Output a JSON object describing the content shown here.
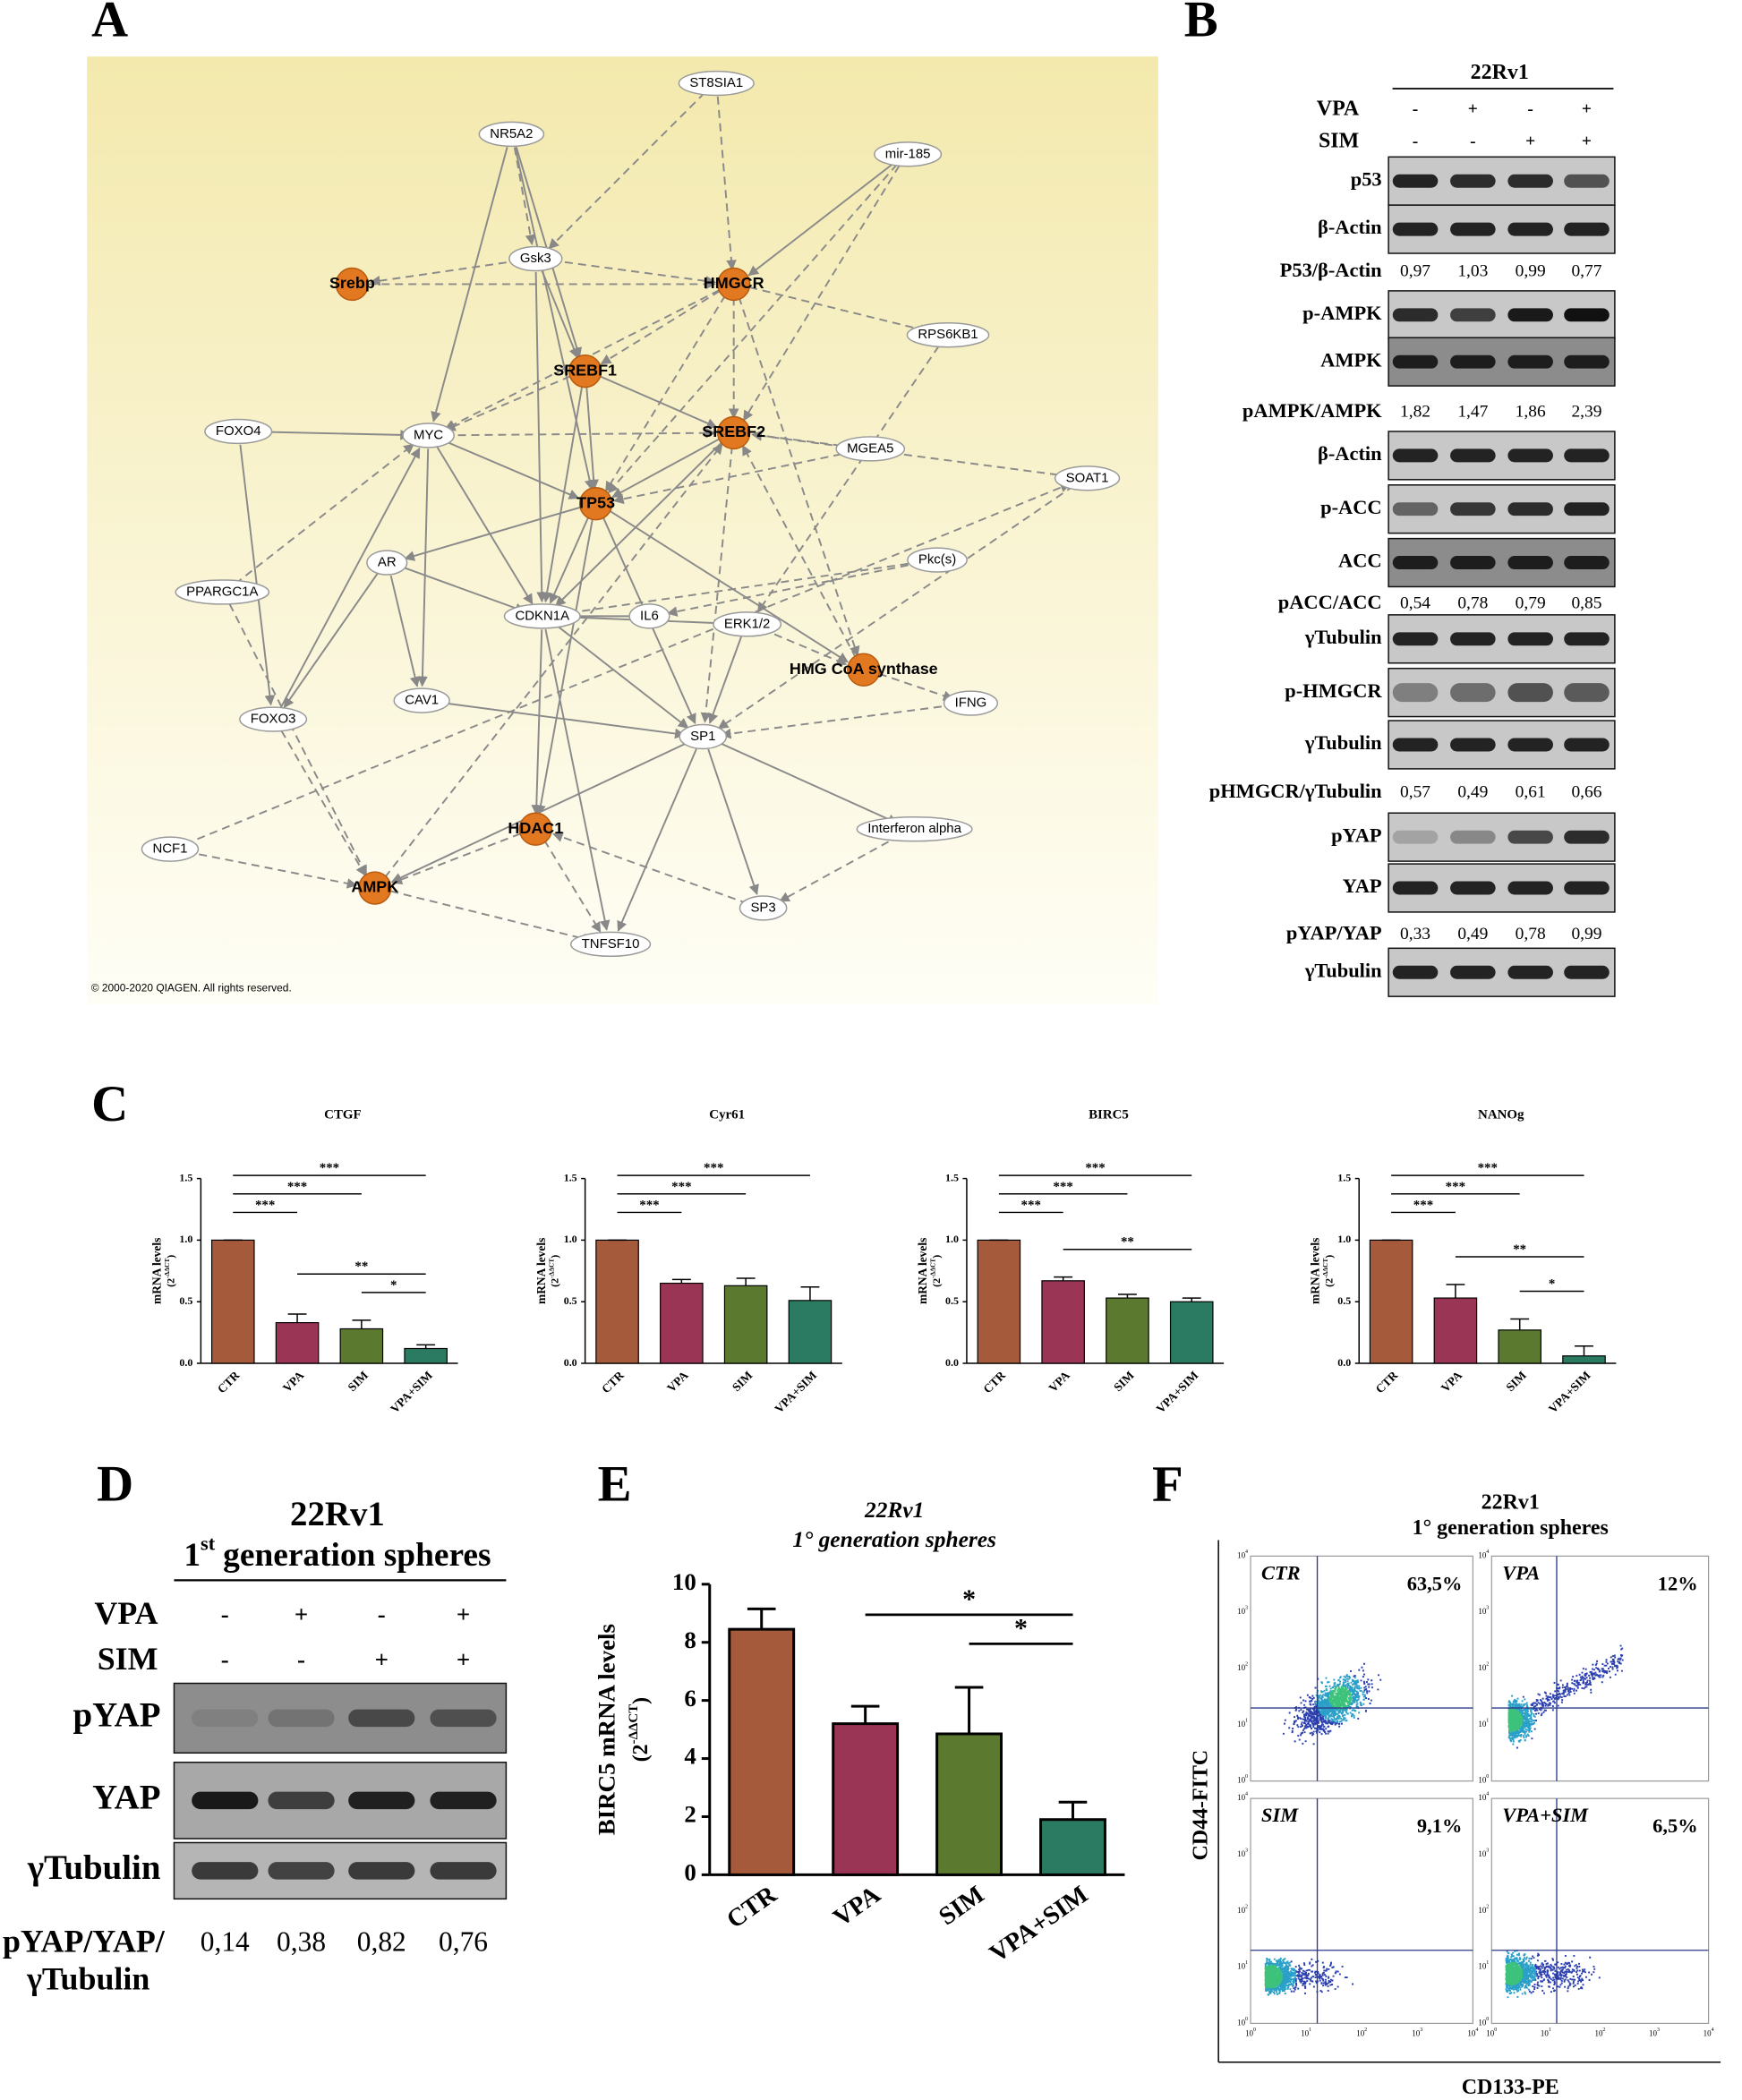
{
  "panel_labels": [
    "A",
    "B",
    "C",
    "D",
    "E",
    "F"
  ],
  "network": {
    "nodes": [
      {
        "label": "ST8SIA1",
        "highlighted": false
      },
      {
        "label": "NR5A2",
        "highlighted": false
      },
      {
        "label": "mir-185",
        "highlighted": false
      },
      {
        "label": "Gsk3",
        "highlighted": false
      },
      {
        "label": "Srebp",
        "highlighted": true
      },
      {
        "label": "HMGCR",
        "highlighted": true
      },
      {
        "label": "RPS6KB1",
        "highlighted": false
      },
      {
        "label": "SREBF1",
        "highlighted": true
      },
      {
        "label": "FOXO4",
        "highlighted": false
      },
      {
        "label": "MYC",
        "highlighted": false
      },
      {
        "label": "SREBF2",
        "highlighted": true
      },
      {
        "label": "MGEA5",
        "highlighted": false
      },
      {
        "label": "SOAT1",
        "highlighted": false
      },
      {
        "label": "TP53",
        "highlighted": true
      },
      {
        "label": "AR",
        "highlighted": false
      },
      {
        "label": "PPARGC1A",
        "highlighted": false
      },
      {
        "label": "Pkc(s)",
        "highlighted": false
      },
      {
        "label": "IL6",
        "highlighted": false
      },
      {
        "label": "ERK1/2",
        "highlighted": false
      },
      {
        "label": "CDKN1A",
        "highlighted": false
      },
      {
        "label": "HMG CoA synthase",
        "highlighted": true
      },
      {
        "label": "CAV1",
        "highlighted": false
      },
      {
        "label": "FOXO3",
        "highlighted": false
      },
      {
        "label": "IFNG",
        "highlighted": false
      },
      {
        "label": "SP1",
        "highlighted": false
      },
      {
        "label": "HDAC1",
        "highlighted": true
      },
      {
        "label": "Interferon alpha",
        "highlighted": false
      },
      {
        "label": "NCF1",
        "highlighted": false
      },
      {
        "label": "AMPK",
        "highlighted": true
      },
      {
        "label": "SP3",
        "highlighted": false
      },
      {
        "label": "TNFSF10",
        "highlighted": false
      }
    ],
    "copyright": "© 2000-2020 QIAGEN. All rights reserved."
  },
  "blot_b": {
    "cell_line": "22Rv1",
    "treatments": [
      {
        "name": "VPA",
        "signs": [
          "-",
          "+",
          "-",
          "+"
        ]
      },
      {
        "name": "SIM",
        "signs": [
          "-",
          "-",
          "+",
          "+"
        ]
      }
    ],
    "rows": [
      {
        "label": "p53"
      },
      {
        "label": "β-Actin"
      },
      {
        "label": "P53/β-Actin",
        "values": [
          "0,97",
          "1,03",
          "0,99",
          "0,77"
        ]
      },
      {
        "label": "p-AMPK"
      },
      {
        "label": "AMPK"
      },
      {
        "label": "pAMPK/AMPK",
        "values": [
          "1,82",
          "1,47",
          "1,86",
          "2,39"
        ]
      },
      {
        "label": "β-Actin"
      },
      {
        "label": "p-ACC"
      },
      {
        "label": "ACC"
      },
      {
        "label": "pACC/ACC",
        "values": [
          "0,54",
          "0,78",
          "0,79",
          "0,85"
        ]
      },
      {
        "label": "γTubulin"
      },
      {
        "label": "p-HMGCR"
      },
      {
        "label": "γTubulin"
      },
      {
        "label": "pHMGCR/γTubulin",
        "values": [
          "0,57",
          "0,49",
          "0,61",
          "0,66"
        ]
      },
      {
        "label": "pYAP"
      },
      {
        "label": "YAP"
      },
      {
        "label": "pYAP/YAP",
        "values": [
          "0,33",
          "0,49",
          "0,78",
          "0,99"
        ]
      },
      {
        "label": "γTubulin"
      }
    ]
  },
  "chart_data": [
    {
      "type": "bar",
      "title": "CTGF",
      "y_label": "mRNA levels",
      "y_unit_base": "(2",
      "y_unit_exp": "-ΔΔCT",
      "y_unit_end": ")",
      "categories": [
        "CTR",
        "VPA",
        "SIM",
        "VPA+SIM"
      ],
      "values": [
        1,
        0.33,
        0.28,
        0.12
      ],
      "errors": [
        0,
        0.07,
        0.07,
        0.03
      ],
      "colors": [
        "#a65a3c",
        "#9b3556",
        "#5b7a2f",
        "#2a7b62"
      ],
      "ylim": [
        0,
        1.5
      ],
      "yticks": [
        {
          "value": 0,
          "label": "0.0"
        },
        {
          "value": 0.5,
          "label": "0.5"
        },
        {
          "value": 1,
          "label": "1.0"
        },
        {
          "value": 1.5,
          "label": "1.5"
        }
      ],
      "significance": [
        {
          "label": "***",
          "between": [
            "CTR",
            "VPA"
          ]
        },
        {
          "label": "***",
          "between": [
            "CTR",
            "SIM"
          ]
        },
        {
          "label": "***",
          "between": [
            "CTR",
            "VPA+SIM"
          ]
        },
        {
          "label": "*",
          "between": [
            "SIM",
            "VPA+SIM"
          ]
        },
        {
          "label": "**",
          "between": [
            "VPA",
            "VPA+SIM"
          ]
        }
      ]
    },
    {
      "type": "bar",
      "title": "Cyr61",
      "y_label": "mRNA levels",
      "y_unit_base": "(2",
      "y_unit_exp": "-ΔΔCT",
      "y_unit_end": ")",
      "categories": [
        "CTR",
        "VPA",
        "SIM",
        "VPA+SIM"
      ],
      "values": [
        1,
        0.65,
        0.63,
        0.51
      ],
      "errors": [
        0,
        0.03,
        0.06,
        0.11
      ],
      "colors": [
        "#a65a3c",
        "#9b3556",
        "#5b7a2f",
        "#2a7b62"
      ],
      "ylim": [
        0,
        1.5
      ],
      "yticks": [
        {
          "value": 0,
          "label": "0.0"
        },
        {
          "value": 0.5,
          "label": "0.5"
        },
        {
          "value": 1,
          "label": "1.0"
        },
        {
          "value": 1.5,
          "label": "1.5"
        }
      ],
      "significance": [
        {
          "label": "***",
          "between": [
            "CTR",
            "VPA"
          ]
        },
        {
          "label": "***",
          "between": [
            "CTR",
            "SIM"
          ]
        },
        {
          "label": "***",
          "between": [
            "CTR",
            "VPA+SIM"
          ]
        }
      ]
    },
    {
      "type": "bar",
      "title": "BIRC5",
      "y_label": "mRNA levels",
      "y_unit_base": "(2",
      "y_unit_exp": "-ΔΔCT",
      "y_unit_end": ")",
      "categories": [
        "CTR",
        "VPA",
        "SIM",
        "VPA+SIM"
      ],
      "values": [
        1,
        0.67,
        0.53,
        0.5
      ],
      "errors": [
        0,
        0.03,
        0.03,
        0.03
      ],
      "colors": [
        "#a65a3c",
        "#9b3556",
        "#5b7a2f",
        "#2a7b62"
      ],
      "ylim": [
        0,
        1.5
      ],
      "yticks": [
        {
          "value": 0,
          "label": "0.0"
        },
        {
          "value": 0.5,
          "label": "0.5"
        },
        {
          "value": 1,
          "label": "1.0"
        },
        {
          "value": 1.5,
          "label": "1.5"
        }
      ],
      "significance": [
        {
          "label": "***",
          "between": [
            "CTR",
            "VPA"
          ]
        },
        {
          "label": "***",
          "between": [
            "CTR",
            "SIM"
          ]
        },
        {
          "label": "***",
          "between": [
            "CTR",
            "VPA+SIM"
          ]
        },
        {
          "label": "**",
          "between": [
            "VPA",
            "VPA+SIM"
          ]
        }
      ]
    },
    {
      "type": "bar",
      "title": "NANOg",
      "y_label": "mRNA levels",
      "y_unit_base": "(2",
      "y_unit_exp": "-ΔΔCT",
      "y_unit_end": ")",
      "categories": [
        "CTR",
        "VPA",
        "SIM",
        "VPA+SIM"
      ],
      "values": [
        1,
        0.53,
        0.27,
        0.06
      ],
      "errors": [
        0,
        0.11,
        0.09,
        0.08
      ],
      "colors": [
        "#a65a3c",
        "#9b3556",
        "#5b7a2f",
        "#2a7b62"
      ],
      "ylim": [
        0,
        1.5
      ],
      "yticks": [
        {
          "value": 0,
          "label": "0.0"
        },
        {
          "value": 0.5,
          "label": "0.5"
        },
        {
          "value": 1,
          "label": "1.0"
        },
        {
          "value": 1.5,
          "label": "1.5"
        }
      ],
      "significance": [
        {
          "label": "***",
          "between": [
            "CTR",
            "VPA"
          ]
        },
        {
          "label": "***",
          "between": [
            "CTR",
            "SIM"
          ]
        },
        {
          "label": "***",
          "between": [
            "CTR",
            "VPA+SIM"
          ]
        },
        {
          "label": "*",
          "between": [
            "SIM",
            "VPA+SIM"
          ]
        },
        {
          "label": "**",
          "between": [
            "VPA",
            "VPA+SIM"
          ]
        }
      ]
    },
    {
      "type": "bar",
      "title": "22Rv1",
      "subtitle": "1° generation spheres",
      "y_label": "BIRC5 mRNA levels",
      "y_unit_base": "(2",
      "y_unit_exp": "-ΔΔCT",
      "y_unit_end": ")",
      "categories": [
        "CTR",
        "VPA",
        "SIM",
        "VPA+SIM"
      ],
      "values": [
        8.45,
        5.2,
        4.85,
        1.9
      ],
      "errors": [
        0.7,
        0.6,
        1.6,
        0.6
      ],
      "colors": [
        "#a65a3c",
        "#9b3556",
        "#5b7a2f",
        "#2a7b62"
      ],
      "ylim": [
        0,
        10
      ],
      "yticks": [
        0,
        2,
        4,
        6,
        8,
        10
      ],
      "significance": [
        {
          "label": "*",
          "between": [
            "SIM",
            "VPA+SIM"
          ]
        },
        {
          "label": "*",
          "between": [
            "VPA",
            "VPA+SIM"
          ]
        }
      ]
    }
  ],
  "blot_d": {
    "cell_line": "22Rv1",
    "subtitle_num": "1",
    "subtitle_sup": "st",
    "subtitle_rest": "generation spheres",
    "treatments": [
      {
        "name": "VPA",
        "signs": [
          "-",
          "+",
          "-",
          "+"
        ]
      },
      {
        "name": "SIM",
        "signs": [
          "-",
          "-",
          "+",
          "+"
        ]
      }
    ],
    "blots": [
      "pYAP",
      "YAP",
      "γTubulin"
    ],
    "ratio_label_1": "pYAP/YAP/",
    "ratio_label_2": "γTubulin",
    "ratio_values": [
      "0,14",
      "0,38",
      "0,82",
      "0,76"
    ]
  },
  "flow_f": {
    "cell_line": "22Rv1",
    "subtitle": "1° generation spheres",
    "y_label": "CD44-FITC",
    "x_label": "CD133-PE",
    "tick_base": "10",
    "tick_exponents": [
      "0",
      "1",
      "2",
      "3",
      "4"
    ],
    "plots": [
      {
        "name": "CTR",
        "percent": "63,5%"
      },
      {
        "name": "VPA",
        "percent": "12%"
      },
      {
        "name": "SIM",
        "percent": "9,1%"
      },
      {
        "name": "VPA+SIM",
        "percent": "6,5%"
      }
    ]
  }
}
